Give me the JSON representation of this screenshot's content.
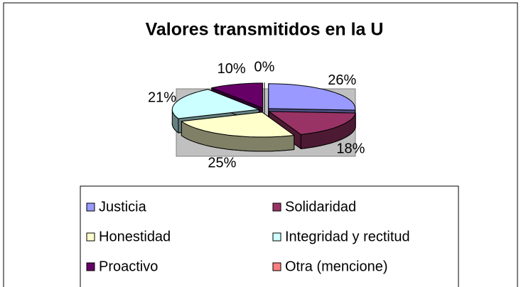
{
  "chart_data": {
    "type": "pie",
    "title": "Valores transmitidos en la U",
    "categories": [
      "Justicia",
      "Solidaridad",
      "Honestidad",
      "Integridad y rectitud",
      "Proactivo",
      "Otra (mencione)"
    ],
    "values": [
      26,
      18,
      25,
      21,
      10,
      0
    ],
    "value_labels": [
      "26%",
      "18%",
      "25%",
      "21%",
      "10%",
      "0%"
    ],
    "colors": [
      "#9999ff",
      "#993366",
      "#ffffcc",
      "#ccffff",
      "#660066",
      "#ff8080"
    ],
    "three_d": true,
    "exploded": true,
    "legend": "bottom"
  }
}
